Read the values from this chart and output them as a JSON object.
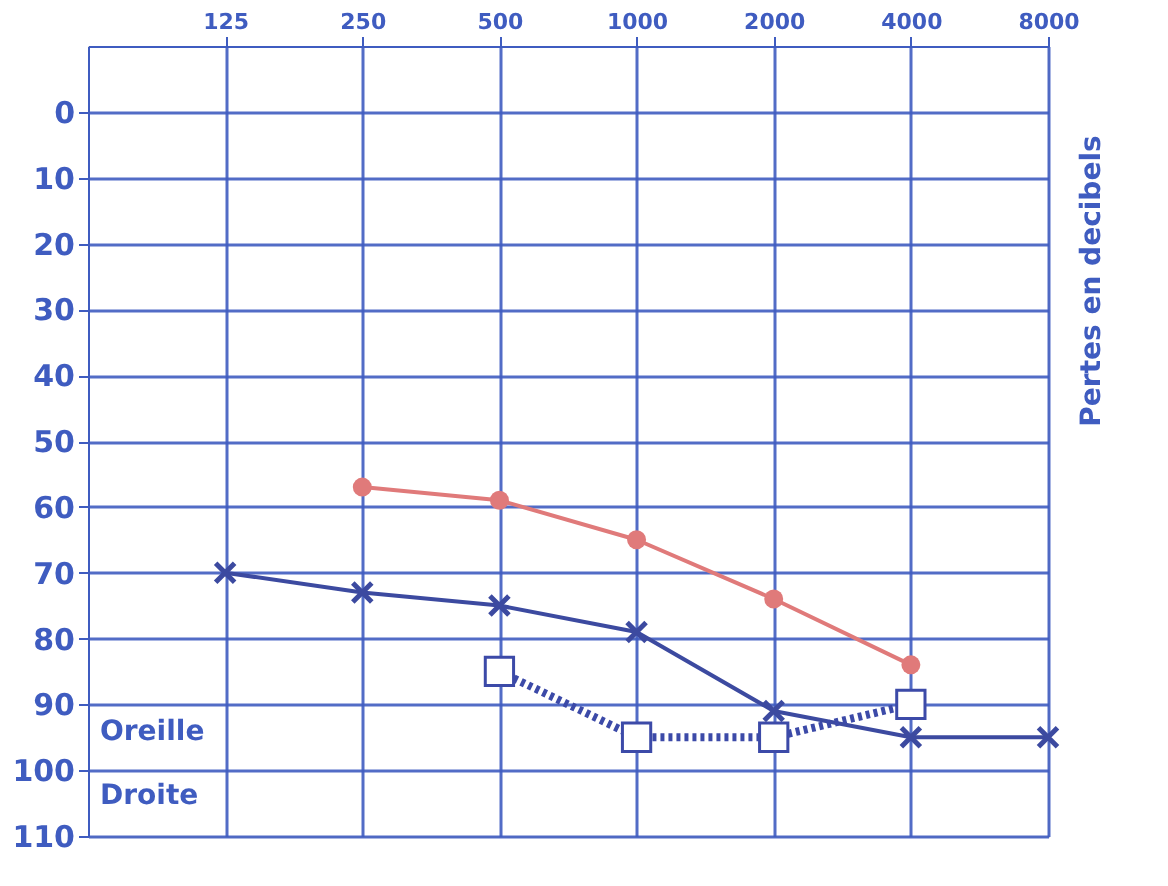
{
  "chart_data": {
    "type": "line",
    "series": [
      {
        "color": "#e07a7a",
        "marker": "circle",
        "line_style": "solid",
        "x": [
          250,
          500,
          1000,
          2000,
          4000
        ],
        "values": [
          57,
          59,
          65,
          74,
          84
        ]
      },
      {
        "color": "#3c4aa0",
        "marker": "cross",
        "line_style": "solid",
        "x": [
          125,
          250,
          500,
          1000,
          2000,
          4000,
          8000
        ],
        "values": [
          70,
          73,
          75,
          79,
          91,
          95,
          95
        ]
      },
      {
        "color": "#3c4aa8",
        "marker": "square",
        "line_style": "dotted",
        "x": [
          500,
          1000,
          2000,
          4000
        ],
        "values": [
          85,
          95,
          95,
          90
        ]
      }
    ],
    "xlim": [
      62.5,
      8000
    ],
    "xticks": [
      125,
      250,
      500,
      1000,
      2000,
      4000,
      8000
    ],
    "ylim": [
      110,
      -10
    ],
    "yticks": [
      0,
      10,
      20,
      30,
      40,
      50,
      60,
      70,
      80,
      90,
      100,
      110
    ],
    "ylabel": "Pertes en decibels",
    "annotations": [
      "Oreille",
      "Droite"
    ],
    "log": "x",
    "grid": true,
    "legend": false
  }
}
